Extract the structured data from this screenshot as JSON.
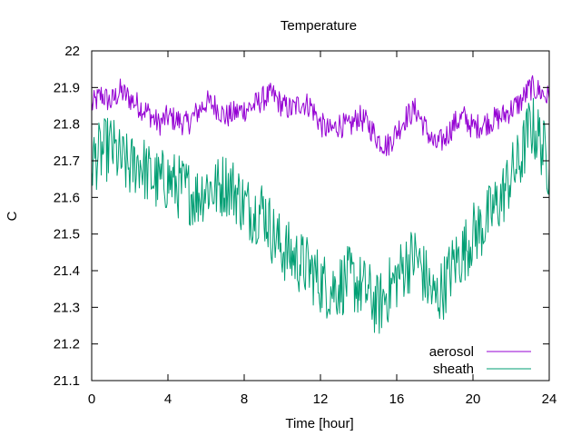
{
  "chart_data": {
    "type": "line",
    "title": "Temperature",
    "xlabel": "Time [hour]",
    "ylabel": "C",
    "xlim": [
      0,
      24
    ],
    "ylim": [
      21.1,
      22.0
    ],
    "x_ticks": [
      0,
      4,
      8,
      12,
      16,
      20,
      24
    ],
    "x_tick_labels": [
      "0",
      "4",
      "8",
      "12",
      "16",
      "20",
      "24"
    ],
    "y_ticks": [
      21.1,
      21.2,
      21.3,
      21.4,
      21.5,
      21.6,
      21.7,
      21.8,
      21.9,
      22.0
    ],
    "y_tick_labels": [
      "21.1",
      "21.2",
      "21.3",
      "21.4",
      "21.5",
      "21.6",
      "21.7",
      "21.8",
      "21.9",
      "22"
    ],
    "grid": false,
    "legend_position": "bottom-right",
    "series": [
      {
        "name": "aerosol",
        "color": "#9400d3",
        "x": [
          0,
          0.5,
          1,
          1.5,
          2,
          2.5,
          3,
          3.5,
          4,
          4.5,
          5,
          5.5,
          6,
          6.5,
          7,
          7.5,
          8,
          8.5,
          9,
          9.5,
          10,
          10.5,
          11,
          11.5,
          12,
          12.5,
          13,
          13.5,
          14,
          14.5,
          15,
          15.5,
          16,
          16.5,
          17,
          17.5,
          18,
          18.5,
          19,
          19.5,
          20,
          20.5,
          21,
          21.5,
          22,
          22.5,
          23,
          23.5,
          24
        ],
        "y": [
          21.85,
          21.88,
          21.86,
          21.89,
          21.87,
          21.85,
          21.83,
          21.8,
          21.82,
          21.81,
          21.8,
          21.83,
          21.86,
          21.85,
          21.82,
          21.83,
          21.84,
          21.85,
          21.87,
          21.88,
          21.85,
          21.84,
          21.86,
          21.85,
          21.8,
          21.78,
          21.8,
          21.79,
          21.82,
          21.8,
          21.76,
          21.74,
          21.78,
          21.82,
          21.84,
          21.79,
          21.74,
          21.76,
          21.8,
          21.82,
          21.79,
          21.8,
          21.81,
          21.82,
          21.84,
          21.86,
          21.9,
          21.89,
          21.87
        ]
      },
      {
        "name": "sheath",
        "color": "#009e73",
        "x": [
          0,
          0.5,
          1,
          1.5,
          2,
          2.5,
          3,
          3.5,
          4,
          4.5,
          5,
          5.5,
          6,
          6.5,
          7,
          7.5,
          8,
          8.5,
          9,
          9.5,
          10,
          10.5,
          11,
          11.5,
          12,
          12.5,
          13,
          13.5,
          14,
          14.5,
          15,
          15.5,
          16,
          16.5,
          17,
          17.5,
          18,
          18.5,
          19,
          19.5,
          20,
          20.5,
          21,
          21.5,
          22,
          22.5,
          23,
          23.5,
          24
        ],
        "y": [
          21.7,
          21.72,
          21.74,
          21.7,
          21.68,
          21.7,
          21.66,
          21.64,
          21.65,
          21.63,
          21.62,
          21.6,
          21.63,
          21.62,
          21.64,
          21.62,
          21.58,
          21.56,
          21.57,
          21.5,
          21.46,
          21.44,
          21.42,
          21.4,
          21.37,
          21.35,
          21.36,
          21.38,
          21.36,
          21.34,
          21.3,
          21.34,
          21.38,
          21.42,
          21.44,
          21.38,
          21.32,
          21.36,
          21.42,
          21.45,
          21.5,
          21.52,
          21.56,
          21.6,
          21.66,
          21.7,
          21.8,
          21.76,
          21.68
        ]
      }
    ]
  }
}
